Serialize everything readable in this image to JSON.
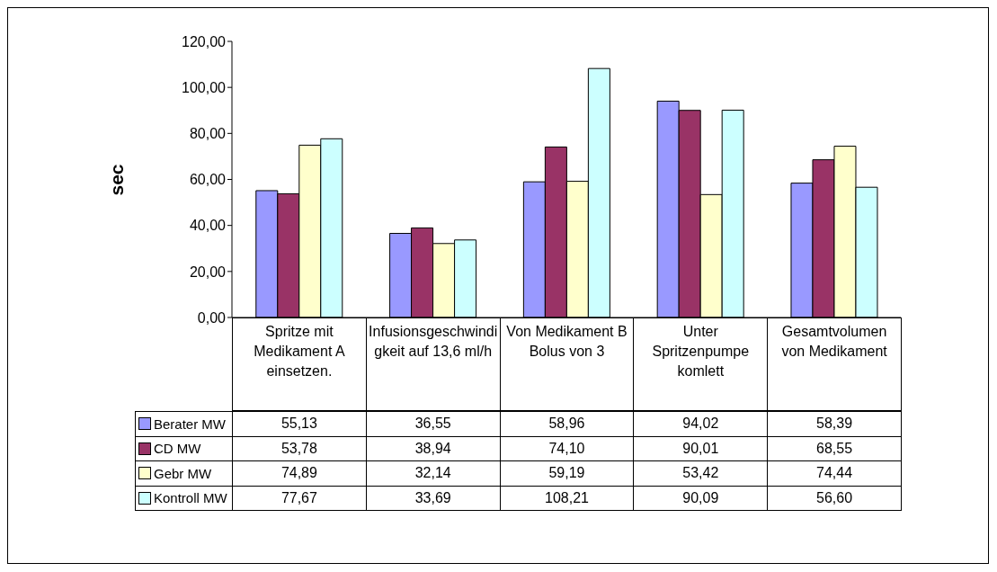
{
  "chart_data": {
    "type": "bar",
    "ylabel": "sec",
    "categories": [
      "Spritze mit Medikament A einsetzen.",
      "Infusionsgeschwindigkeit auf 13,6 ml/h",
      "Von Medikament B Bolus von 3",
      "Unter Spritzenpumpe komlett",
      "Gesamtvolumen von Medikament"
    ],
    "series": [
      {
        "name": "Berater MW",
        "color": "#9999ff",
        "values": [
          55.13,
          36.55,
          58.96,
          94.02,
          58.39
        ],
        "value_labels": [
          "55,13",
          "36,55",
          "58,96",
          "94,02",
          "58,39"
        ]
      },
      {
        "name": "CD MW",
        "color": "#993366",
        "values": [
          53.78,
          38.94,
          74.1,
          90.01,
          68.55
        ],
        "value_labels": [
          "53,78",
          "38,94",
          "74,10",
          "90,01",
          "68,55"
        ]
      },
      {
        "name": "Gebr MW",
        "color": "#ffffcc",
        "values": [
          74.89,
          32.14,
          59.19,
          53.42,
          74.44
        ],
        "value_labels": [
          "74,89",
          "32,14",
          "59,19",
          "53,42",
          "74,44"
        ]
      },
      {
        "name": "Kontroll MW",
        "color": "#ccffff",
        "values": [
          77.67,
          33.69,
          108.21,
          90.09,
          56.6
        ],
        "value_labels": [
          "77,67",
          "33,69",
          "108,21",
          "90,09",
          "56,60"
        ]
      }
    ],
    "ylim": [
      0,
      120
    ],
    "yticks": [
      {
        "value": 0,
        "label": "0,00"
      },
      {
        "value": 20,
        "label": "20,00"
      },
      {
        "value": 40,
        "label": "40,00"
      },
      {
        "value": 60,
        "label": "60,00"
      },
      {
        "value": 80,
        "label": "80,00"
      },
      {
        "value": 100,
        "label": "100,00"
      },
      {
        "value": 120,
        "label": "120,00"
      }
    ],
    "legend": "bottom"
  }
}
